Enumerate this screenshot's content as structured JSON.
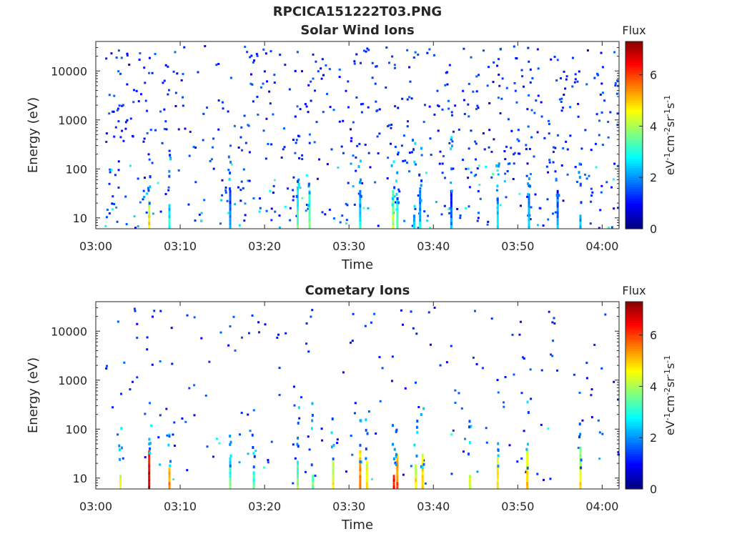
{
  "figure": {
    "filename": "RPCICA151222T03.PNG"
  },
  "colors": {
    "axis": "#262626",
    "colormap": [
      "#00007f",
      "#0000ff",
      "#007fff",
      "#00ffff",
      "#7fff7f",
      "#ffff00",
      "#ff7f00",
      "#ff0000",
      "#7f0000"
    ]
  },
  "chart_data": [
    {
      "type": "heatmap",
      "title": "Solar Wind Ions",
      "xlabel": "Time",
      "ylabel": "Energy (eV)",
      "xlim": [
        "03:00",
        "04:02"
      ],
      "ylim_log": [
        6,
        40000
      ],
      "yscale": "log",
      "xticks": [
        "03:00",
        "03:10",
        "03:20",
        "03:30",
        "03:40",
        "03:50",
        "04:00"
      ],
      "yticks": [
        "10",
        "100",
        "1000",
        "10000"
      ],
      "colorbar": {
        "label": "Flux",
        "unit_label": "eV-1cm-2sr-1s-1",
        "range": [
          0,
          7.3
        ],
        "ticks": [
          "0",
          "2",
          "4",
          "6"
        ]
      },
      "hot_columns_minutes": [
        6.2,
        8.6,
        15.8,
        23.8,
        25.2,
        31.2,
        35.1,
        35.6,
        37.6,
        38.3,
        42.0,
        47.5,
        51.2,
        54.6,
        57.3
      ],
      "hot_column_values": [
        4.8,
        3.0,
        2.2,
        3.5,
        3.8,
        2.8,
        4.2,
        3.6,
        2.4,
        2.6,
        2.0,
        2.8,
        2.5,
        2.2,
        2.4
      ]
    },
    {
      "type": "heatmap",
      "title": "Cometary Ions",
      "xlabel": "Time",
      "ylabel": "Energy (eV)",
      "xlim": [
        "03:00",
        "04:02"
      ],
      "ylim_log": [
        6,
        40000
      ],
      "yscale": "log",
      "xticks": [
        "03:00",
        "03:10",
        "03:20",
        "03:30",
        "03:40",
        "03:50",
        "04:00"
      ],
      "yticks": [
        "10",
        "100",
        "1000",
        "10000"
      ],
      "colorbar": {
        "label": "Flux",
        "unit_label": "eV-1cm-2sr-1s-1",
        "range": [
          0,
          7.3
        ],
        "ticks": [
          "0",
          "2",
          "4",
          "6"
        ]
      },
      "hot_columns_minutes": [
        2.8,
        6.2,
        8.6,
        15.8,
        18.6,
        23.8,
        25.6,
        28.0,
        31.2,
        32.0,
        35.2,
        35.6,
        37.8,
        38.6,
        44.2,
        47.5,
        51.0,
        57.3
      ],
      "hot_column_values": [
        4.6,
        7.0,
        5.6,
        3.4,
        3.2,
        3.8,
        3.6,
        4.6,
        5.8,
        5.0,
        6.5,
        5.8,
        4.8,
        5.2,
        4.5,
        5.0,
        5.2,
        4.8
      ]
    }
  ]
}
